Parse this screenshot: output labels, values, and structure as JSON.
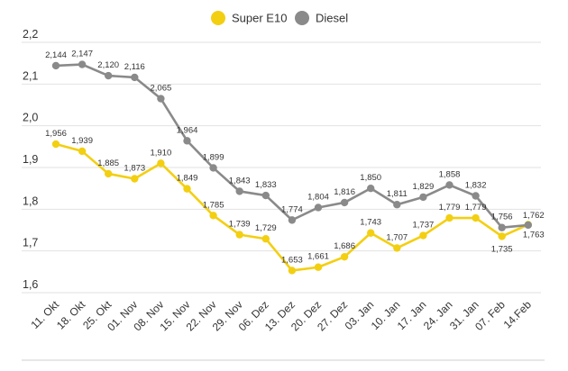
{
  "legend": {
    "items": [
      {
        "label": "Super E10",
        "color": "#f3cf12"
      },
      {
        "label": "Diesel",
        "color": "#8a8a8a"
      }
    ]
  },
  "chart_data": {
    "type": "line",
    "title": "",
    "xlabel": "",
    "ylabel": "",
    "ylim": [
      1.6,
      2.2
    ],
    "yticks": [
      "1,6",
      "1,7",
      "1,8",
      "1,9",
      "2,0",
      "2,1",
      "2,2"
    ],
    "yticks_values": [
      1.6,
      1.7,
      1.8,
      1.9,
      2.0,
      2.1,
      2.2
    ],
    "grid": true,
    "legend_position": "top-center",
    "categories": [
      "11. Okt",
      "18. Okt",
      "25. Okt",
      "01. Nov",
      "08. Nov",
      "15. Nov",
      "22. Nov",
      "29. Nov",
      "06. Dez",
      "13. Dez",
      "20. Dez",
      "27. Dez",
      "03. Jan",
      "10. Jan",
      "17. Jan",
      "24. Jan",
      "31. Jan",
      "07. Feb",
      "14.Feb"
    ],
    "series": [
      {
        "name": "Super E10",
        "color": "#f3cf12",
        "values": [
          1.956,
          1.939,
          1.885,
          1.873,
          1.91,
          1.849,
          1.785,
          1.739,
          1.729,
          1.653,
          1.661,
          1.686,
          1.743,
          1.707,
          1.737,
          1.779,
          1.779,
          1.735,
          1.763
        ],
        "labels": [
          "1,956",
          "1,939",
          "1,885",
          "1,873",
          "1,910",
          "1,849",
          "1,785",
          "1,739",
          "1,729",
          "1,653",
          "1,661",
          "1,686",
          "1,743",
          "1,707",
          "1,737",
          "1,779",
          "1,779",
          "1,735",
          "1,763"
        ]
      },
      {
        "name": "Diesel",
        "color": "#8a8a8a",
        "values": [
          2.144,
          2.147,
          2.12,
          2.116,
          2.065,
          1.964,
          1.899,
          1.843,
          1.833,
          1.774,
          1.804,
          1.816,
          1.85,
          1.811,
          1.829,
          1.858,
          1.832,
          1.756,
          1.762
        ],
        "labels": [
          "2,144",
          "2,147",
          "2,120",
          "2,116",
          "2,065",
          "1,964",
          "1,899",
          "1,843",
          "1,833",
          "1,774",
          "1,804",
          "1,816",
          "1,850",
          "1,811",
          "1,829",
          "1,858",
          "1,832",
          "1,756",
          "1,762"
        ]
      }
    ]
  }
}
